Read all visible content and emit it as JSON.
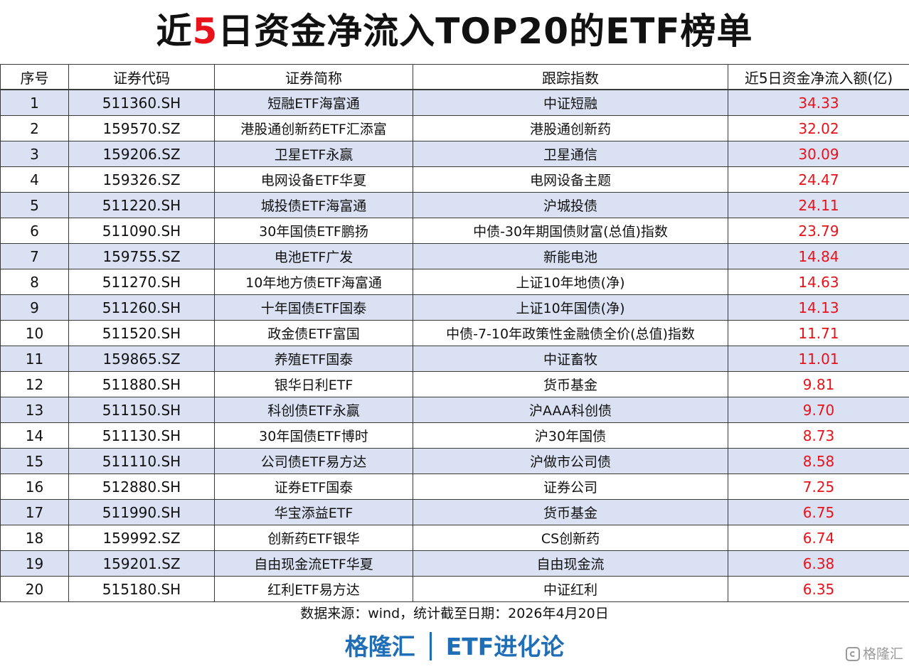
{
  "title": {
    "prefix": "近",
    "highlight": "5",
    "suffix": "日资金净流入TOP20的ETF榜单",
    "accent_color": "#e8121a"
  },
  "table": {
    "headers": [
      "序号",
      "证券代码",
      "证券简称",
      "跟踪指数",
      "近5日资金净流入额(亿)"
    ],
    "rows": [
      {
        "rank": "1",
        "code": "511360.SH",
        "name": "短融ETF海富通",
        "index": "中证短融",
        "amount": "34.33"
      },
      {
        "rank": "2",
        "code": "159570.SZ",
        "name": "港股通创新药ETF汇添富",
        "index": "港股通创新药",
        "amount": "32.02"
      },
      {
        "rank": "3",
        "code": "159206.SZ",
        "name": "卫星ETF永赢",
        "index": "卫星通信",
        "amount": "30.09"
      },
      {
        "rank": "4",
        "code": "159326.SZ",
        "name": "电网设备ETF华夏",
        "index": "电网设备主题",
        "amount": "24.47"
      },
      {
        "rank": "5",
        "code": "511220.SH",
        "name": "城投债ETF海富通",
        "index": "沪城投债",
        "amount": "24.11"
      },
      {
        "rank": "6",
        "code": "511090.SH",
        "name": "30年国债ETF鹏扬",
        "index": "中债-30年期国债财富(总值)指数",
        "amount": "23.79"
      },
      {
        "rank": "7",
        "code": "159755.SZ",
        "name": "电池ETF广发",
        "index": "新能电池",
        "amount": "14.84"
      },
      {
        "rank": "8",
        "code": "511270.SH",
        "name": "10年地方债ETF海富通",
        "index": "上证10年地债(净)",
        "amount": "14.63"
      },
      {
        "rank": "9",
        "code": "511260.SH",
        "name": "十年国债ETF国泰",
        "index": "上证10年国债(净)",
        "amount": "14.13"
      },
      {
        "rank": "10",
        "code": "511520.SH",
        "name": "政金债ETF富国",
        "index": "中债-7-10年政策性金融债全价(总值)指数",
        "amount": "11.71"
      },
      {
        "rank": "11",
        "code": "159865.SZ",
        "name": "养殖ETF国泰",
        "index": "中证畜牧",
        "amount": "11.01"
      },
      {
        "rank": "12",
        "code": "511880.SH",
        "name": "银华日利ETF",
        "index": "货币基金",
        "amount": "9.81"
      },
      {
        "rank": "13",
        "code": "511150.SH",
        "name": "科创债ETF永赢",
        "index": "沪AAA科创债",
        "amount": "9.70"
      },
      {
        "rank": "14",
        "code": "511130.SH",
        "name": "30年国债ETF博时",
        "index": "沪30年国债",
        "amount": "8.73"
      },
      {
        "rank": "15",
        "code": "511110.SH",
        "name": "公司债ETF易方达",
        "index": "沪做市公司债",
        "amount": "8.58"
      },
      {
        "rank": "16",
        "code": "512880.SH",
        "name": "证券ETF国泰",
        "index": "证券公司",
        "amount": "7.25"
      },
      {
        "rank": "17",
        "code": "511990.SH",
        "name": "华宝添益ETF",
        "index": "货币基金",
        "amount": "6.75"
      },
      {
        "rank": "18",
        "code": "159992.SZ",
        "name": "创新药ETF银华",
        "index": "CS创新药",
        "amount": "6.74"
      },
      {
        "rank": "19",
        "code": "159201.SZ",
        "name": "自由现金流ETF华夏",
        "index": "自由现金流",
        "amount": "6.38"
      },
      {
        "rank": "20",
        "code": "515180.SH",
        "name": "红利ETF易方达",
        "index": "中证红利",
        "amount": "6.35"
      }
    ],
    "row_band_color": "#d9e1f3",
    "amount_color": "#e8121a"
  },
  "source_note": "数据来源：wind，统计截至日期：2026年4月20日",
  "footer": {
    "brand": "格隆汇",
    "column": "ETF进化论",
    "color": "#1f6eb6"
  },
  "watermark": {
    "icon": "gelonghui-logo-icon",
    "text": "格隆汇"
  }
}
